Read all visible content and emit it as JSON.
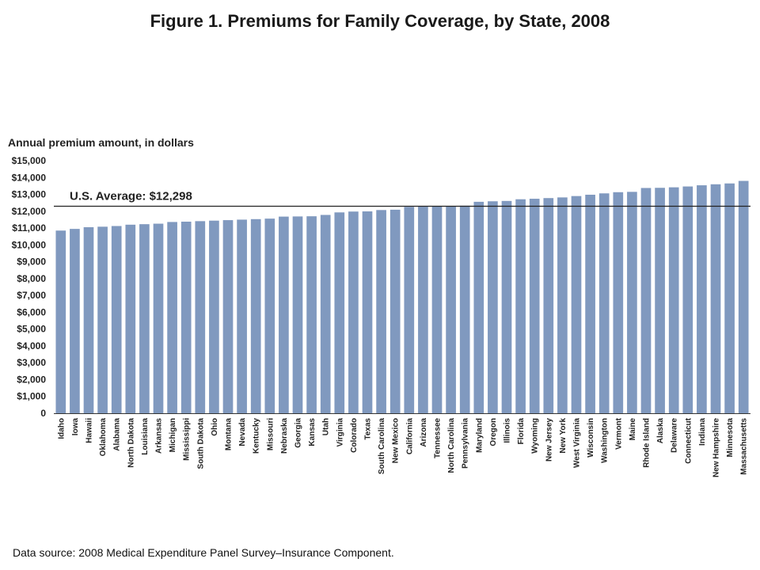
{
  "chart_data": {
    "type": "bar",
    "title": "Figure 1. Premiums for Family Coverage, by State, 2008",
    "ylabel": "Annual premium amount, in dollars",
    "xlabel": "",
    "ylim": [
      0,
      15000
    ],
    "y_ticks": [
      "0",
      "$1,000",
      "$2,000",
      "$3,000",
      "$4,000",
      "$5,000",
      "$6,000",
      "$7,000",
      "$8,000",
      "$9,000",
      "$10,000",
      "$11,000",
      "$12,000",
      "$13,000",
      "$14,000",
      "$15,000"
    ],
    "grid": false,
    "bar_color": "#8099bf",
    "reference_line": {
      "label": "U.S. Average: $12,298",
      "value": 12298
    },
    "categories": [
      "Idaho",
      "Iowa",
      "Hawaii",
      "Oklahoma",
      "Alabama",
      "North Dakota",
      "Louisiana",
      "Arkansas",
      "Michigan",
      "Mississippi",
      "South Dakota",
      "Ohio",
      "Montana",
      "Nevada",
      "Kentucky",
      "Missouri",
      "Nebraska",
      "Georgia",
      "Kansas",
      "Utah",
      "Virginia",
      "Colorado",
      "Texas",
      "South Carolina",
      "New Mexico",
      "California",
      "Arizona",
      "Tennessee",
      "North Carolina",
      "Pennsylvania",
      "Maryland",
      "Oregon",
      "Illinois",
      "Florida",
      "Wyoming",
      "New Jersey",
      "New York",
      "West Virginia",
      "Wisconsin",
      "Washington",
      "Vermont",
      "Maine",
      "Rhode Island",
      "Alaska",
      "Delaware",
      "Connecticut",
      "Indiana",
      "New Hampshire",
      "Minnesota",
      "Massachusetts"
    ],
    "values": [
      10850,
      10950,
      11050,
      11080,
      11120,
      11200,
      11230,
      11260,
      11360,
      11380,
      11410,
      11440,
      11470,
      11500,
      11530,
      11560,
      11680,
      11690,
      11700,
      11780,
      11930,
      11980,
      11990,
      12070,
      12090,
      12260,
      12270,
      12280,
      12290,
      12330,
      12560,
      12590,
      12610,
      12710,
      12740,
      12780,
      12820,
      12900,
      12980,
      13060,
      13130,
      13150,
      13380,
      13390,
      13420,
      13470,
      13540,
      13600,
      13650,
      13800
    ]
  },
  "footer": {
    "source": "Data source: 2008 Medical Expenditure Panel Survey–Insurance Component."
  }
}
